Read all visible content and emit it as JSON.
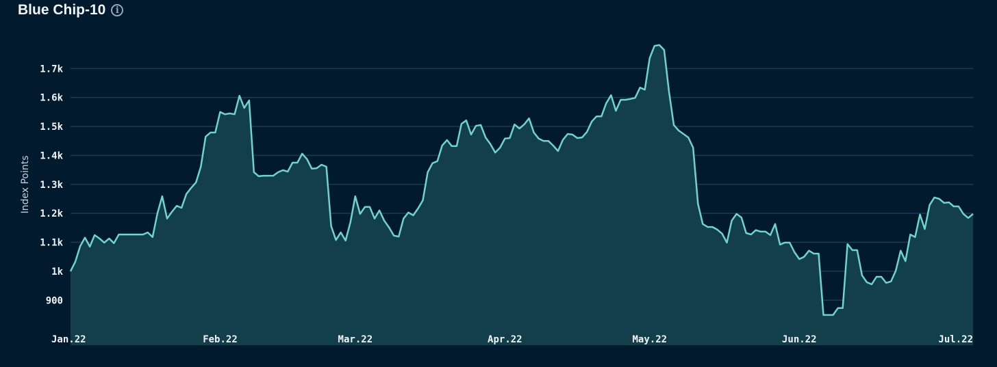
{
  "header": {
    "title": "Blue Chip-10",
    "info_icon": "info-circle-icon"
  },
  "colors": {
    "background": "#021a2e",
    "line": "#6fd3d0",
    "fill": "#123f4b",
    "grid": "#1c3a50"
  },
  "chart_data": {
    "type": "area",
    "title": "Blue Chip-10",
    "xlabel": "",
    "ylabel": "Index Points",
    "ylim": [
      745,
      1795
    ],
    "grid": true,
    "y_ticks": [
      {
        "value": 900,
        "label": "900"
      },
      {
        "value": 1000,
        "label": "1k"
      },
      {
        "value": 1100,
        "label": "1.1k"
      },
      {
        "value": 1200,
        "label": "1.2k"
      },
      {
        "value": 1300,
        "label": "1.3k"
      },
      {
        "value": 1400,
        "label": "1.4k"
      },
      {
        "value": 1500,
        "label": "1.5k"
      },
      {
        "value": 1600,
        "label": "1.6k"
      },
      {
        "value": 1700,
        "label": "1.7k"
      }
    ],
    "x_ticks": [
      {
        "date": "2022-01-01",
        "label": "Jan.22"
      },
      {
        "date": "2022-02-01",
        "label": "Feb.22"
      },
      {
        "date": "2022-03-01",
        "label": "Mar.22"
      },
      {
        "date": "2022-04-01",
        "label": "Apr.22"
      },
      {
        "date": "2022-05-01",
        "label": "May.22"
      },
      {
        "date": "2022-06-01",
        "label": "Jun.22"
      },
      {
        "date": "2022-07-01",
        "label": "Jul.22"
      }
    ],
    "series_daily_by_month": [
      {
        "month": "2022-01",
        "values": [
          1000,
          1033,
          1087,
          1116,
          1085,
          1125,
          1113,
          1099,
          1113,
          1097,
          1127,
          1127,
          1127,
          1127,
          1127,
          1127,
          1134,
          1118,
          1200,
          1259,
          1182,
          1205,
          1226,
          1219,
          1267,
          1288,
          1307,
          1361,
          1465,
          1479,
          1479
        ]
      },
      {
        "month": "2022-02",
        "values": [
          1550,
          1542,
          1545,
          1542,
          1606,
          1564,
          1590,
          1342,
          1328,
          1330,
          1330,
          1330,
          1342,
          1349,
          1344,
          1375,
          1375,
          1406,
          1387,
          1354,
          1356,
          1368,
          1361,
          1156,
          1108,
          1134,
          1106,
          1170
        ]
      },
      {
        "month": "2022-03",
        "values": [
          1259,
          1198,
          1222,
          1222,
          1182,
          1210,
          1175,
          1151,
          1123,
          1120,
          1182,
          1203,
          1193,
          1217,
          1245,
          1342,
          1373,
          1380,
          1434,
          1453,
          1432,
          1432,
          1509,
          1521,
          1472,
          1502,
          1505,
          1462,
          1439,
          1410,
          1427
        ]
      },
      {
        "month": "2022-04",
        "values": [
          1458,
          1460,
          1507,
          1493,
          1507,
          1528,
          1479,
          1458,
          1450,
          1450,
          1434,
          1415,
          1453,
          1474,
          1472,
          1460,
          1462,
          1481,
          1517,
          1535,
          1535,
          1580,
          1608,
          1554,
          1592,
          1592,
          1595,
          1599,
          1634,
          1627
        ]
      },
      {
        "month": "2022-05",
        "values": [
          1736,
          1778,
          1781,
          1764,
          1620,
          1505,
          1486,
          1474,
          1462,
          1427,
          1233,
          1163,
          1153,
          1153,
          1144,
          1130,
          1099,
          1175,
          1198,
          1186,
          1132,
          1127,
          1142,
          1137,
          1137,
          1125,
          1163,
          1092,
          1099,
          1099,
          1066
        ]
      },
      {
        "month": "2022-06",
        "values": [
          1042,
          1050,
          1071,
          1061,
          1061,
          849,
          849,
          849,
          873,
          873,
          1094,
          1073,
          1073,
          986,
          962,
          955,
          981,
          981,
          960,
          965,
          1002,
          1071,
          1035,
          1127,
          1118,
          1196,
          1146,
          1229,
          1255,
          1250
        ]
      },
      {
        "month": "2022-07",
        "values": [
          1236,
          1238,
          1224,
          1224,
          1198,
          1184,
          1198
        ]
      }
    ]
  }
}
